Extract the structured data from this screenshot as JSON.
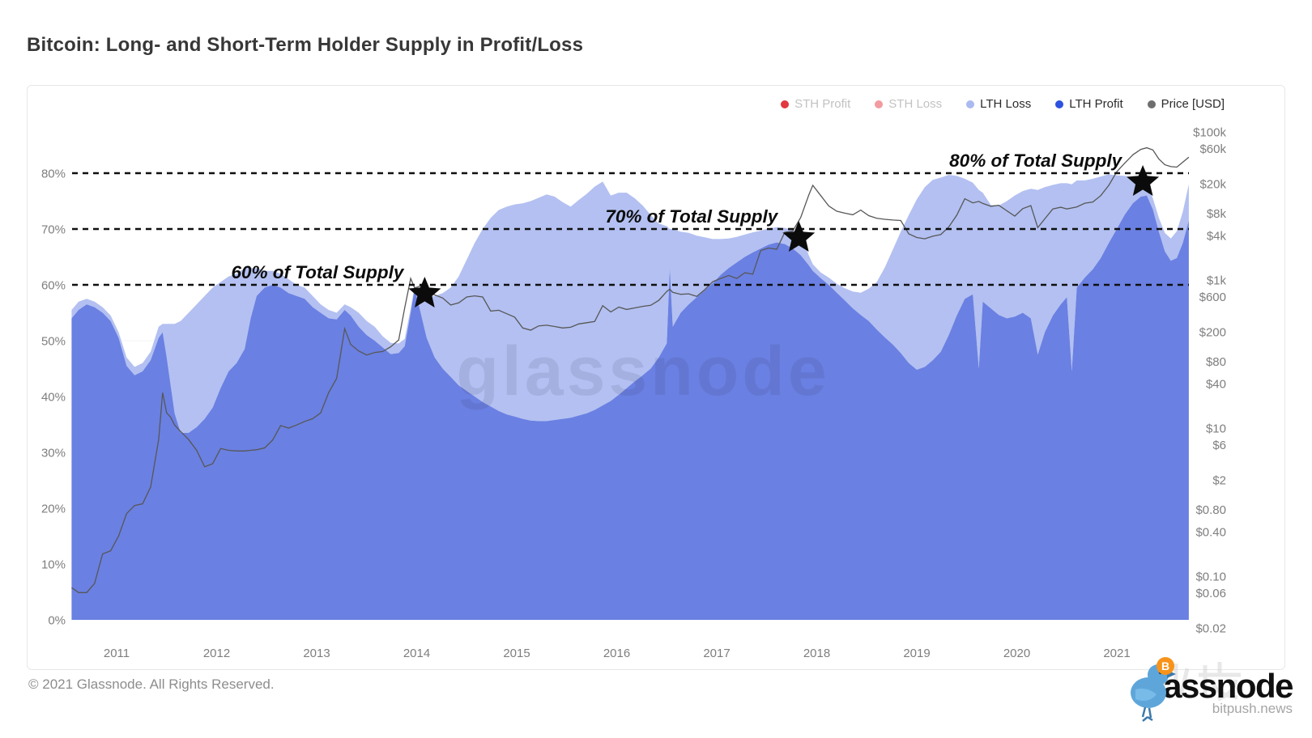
{
  "page": {
    "title": "Bitcoin: Long- and Short-Term Holder Supply in Profit/Loss",
    "watermark": "glassnode",
    "footer_copyright": "© 2021 Glassnode. All Rights Reserved.",
    "brand_logo_text": "glassnode",
    "brand_sub_text": "bitpush.news"
  },
  "legend": {
    "items": [
      {
        "label": "STH Profit",
        "color": "#e2383f",
        "active": false
      },
      {
        "label": "STH Loss",
        "color": "#f29ba0",
        "active": false
      },
      {
        "label": "LTH Loss",
        "color": "#aab9f0",
        "active": true
      },
      {
        "label": "LTH Profit",
        "color": "#2d52e0",
        "active": true
      },
      {
        "label": "Price [USD]",
        "color": "#6e6e6e",
        "active": true
      }
    ]
  },
  "chart_data": {
    "type": "area",
    "title": "Bitcoin: Long- and Short-Term Holder Supply in Profit/Loss",
    "x_ticks": [
      2011,
      2012,
      2013,
      2014,
      2015,
      2016,
      2017,
      2018,
      2019,
      2020,
      2021
    ],
    "left_axis": {
      "unit": "%",
      "ticks": [
        0,
        10,
        20,
        30,
        40,
        50,
        60,
        70,
        80
      ],
      "range": [
        0,
        90
      ]
    },
    "right_axis": {
      "label": "Price [USD]",
      "scale": "log",
      "ticks": [
        {
          "label": "$100k",
          "value": 100000
        },
        {
          "label": "$60k",
          "value": 60000
        },
        {
          "label": "$20k",
          "value": 20000
        },
        {
          "label": "$8k",
          "value": 8000
        },
        {
          "label": "$4k",
          "value": 4000
        },
        {
          "label": "$1k",
          "value": 1000
        },
        {
          "label": "$600",
          "value": 600
        },
        {
          "label": "$200",
          "value": 200
        },
        {
          "label": "$80",
          "value": 80
        },
        {
          "label": "$40",
          "value": 40
        },
        {
          "label": "$10",
          "value": 10
        },
        {
          "label": "$6",
          "value": 6
        },
        {
          "label": "$2",
          "value": 2
        },
        {
          "label": "$0.80",
          "value": 0.8
        },
        {
          "label": "$0.40",
          "value": 0.4
        },
        {
          "label": "$0.10",
          "value": 0.1
        },
        {
          "label": "$0.06",
          "value": 0.06
        },
        {
          "label": "$0.02",
          "value": 0.02
        }
      ]
    },
    "annotations": [
      {
        "text": "60% of Total Supply",
        "level_pct": 60,
        "star_year": 2014.08
      },
      {
        "text": "70% of Total Supply",
        "level_pct": 70,
        "star_year": 2017.82
      },
      {
        "text": "80% of Total Supply",
        "level_pct": 80,
        "star_year": 2021.26
      }
    ],
    "colors": {
      "lth_profit_area": "#6a80e2",
      "lth_loss_area": "#b3c0f1",
      "price_line": "#575757",
      "dashed_level": "#0f0f0f",
      "star": "#0b0b0b",
      "axis_text": "#7e7e7e",
      "gridline": "#f3f3f3"
    },
    "series": {
      "x": [
        2010.55,
        2010.62,
        2010.7,
        2010.78,
        2010.86,
        2010.94,
        2011.02,
        2011.1,
        2011.18,
        2011.26,
        2011.34,
        2011.42,
        2011.46,
        2011.5,
        2011.54,
        2011.58,
        2011.64,
        2011.72,
        2011.8,
        2011.88,
        2011.96,
        2012.04,
        2012.12,
        2012.2,
        2012.28,
        2012.34,
        2012.4,
        2012.48,
        2012.56,
        2012.64,
        2012.72,
        2012.8,
        2012.88,
        2012.96,
        2013.04,
        2013.12,
        2013.2,
        2013.28,
        2013.34,
        2013.42,
        2013.5,
        2013.58,
        2013.66,
        2013.74,
        2013.82,
        2013.88,
        2013.94,
        2013.98,
        2014.04,
        2014.1,
        2014.18,
        2014.26,
        2014.34,
        2014.42,
        2014.5,
        2014.58,
        2014.66,
        2014.74,
        2014.82,
        2014.9,
        2014.98,
        2015.06,
        2015.14,
        2015.22,
        2015.3,
        2015.38,
        2015.46,
        2015.54,
        2015.62,
        2015.7,
        2015.78,
        2015.86,
        2015.94,
        2016.02,
        2016.1,
        2016.18,
        2016.26,
        2016.34,
        2016.42,
        2016.5,
        2016.53,
        2016.56,
        2016.64,
        2016.72,
        2016.8,
        2016.88,
        2016.96,
        2017.04,
        2017.12,
        2017.2,
        2017.28,
        2017.36,
        2017.44,
        2017.52,
        2017.6,
        2017.68,
        2017.76,
        2017.84,
        2017.92,
        2017.96,
        2018.04,
        2018.12,
        2018.2,
        2018.28,
        2018.36,
        2018.44,
        2018.52,
        2018.6,
        2018.68,
        2018.76,
        2018.84,
        2018.92,
        2019.0,
        2019.08,
        2019.16,
        2019.24,
        2019.32,
        2019.4,
        2019.48,
        2019.56,
        2019.62,
        2019.66,
        2019.74,
        2019.82,
        2019.9,
        2019.98,
        2020.06,
        2020.14,
        2020.21,
        2020.28,
        2020.36,
        2020.44,
        2020.5,
        2020.55,
        2020.6,
        2020.68,
        2020.76,
        2020.84,
        2020.92,
        2021.0,
        2021.08,
        2021.16,
        2021.24,
        2021.3,
        2021.36,
        2021.42,
        2021.48,
        2021.54,
        2021.6,
        2021.66,
        2021.72
      ],
      "lth_profit_pct": [
        54,
        55.5,
        56.5,
        56,
        55,
        53.5,
        50.5,
        45.5,
        43.8,
        44.5,
        46.5,
        50.5,
        51.5,
        47,
        42,
        37,
        33.5,
        33.5,
        34.5,
        36,
        38,
        41.5,
        44.5,
        46,
        48.5,
        54,
        58,
        59.5,
        60,
        59.5,
        58.5,
        58,
        57.5,
        56,
        55,
        54,
        53.8,
        55.5,
        54.5,
        52.5,
        51,
        50,
        48.8,
        47.6,
        47.8,
        49,
        55,
        59.3,
        55,
        50.5,
        47,
        45,
        43.5,
        42,
        41,
        40,
        39,
        38.2,
        37.4,
        36.8,
        36.4,
        36,
        35.7,
        35.6,
        35.6,
        35.8,
        36,
        36.2,
        36.6,
        37,
        37.6,
        38.4,
        39.2,
        40.3,
        41.5,
        42.7,
        43.8,
        45,
        47,
        49.5,
        63,
        52.5,
        55,
        56.5,
        57.8,
        59,
        60.3,
        61.8,
        63,
        64,
        65,
        65.8,
        66.5,
        67.2,
        67.6,
        67.3,
        66.5,
        65.3,
        63.5,
        62.5,
        61.2,
        60,
        58.6,
        57.2,
        55.8,
        54.6,
        53.5,
        52,
        50.6,
        49.3,
        47.8,
        46,
        44.8,
        45.3,
        46.5,
        48,
        51,
        54.5,
        57.5,
        58.3,
        45,
        57,
        55.8,
        54.6,
        54,
        54.3,
        55,
        54,
        47.5,
        51.5,
        54.5,
        56.5,
        57.8,
        44.5,
        59.5,
        61.3,
        62.8,
        64.8,
        67.5,
        70,
        72.6,
        74.6,
        75.8,
        76,
        73.5,
        69.5,
        66,
        64.3,
        64.8,
        67.5,
        71.5
      ],
      "lth_loss_pct": [
        1.5,
        1.5,
        1,
        1,
        1,
        1,
        1,
        1.5,
        1.5,
        1.5,
        1.5,
        2,
        1.5,
        6,
        11,
        16,
        20,
        21.5,
        22,
        22,
        21.5,
        19,
        17,
        16,
        14.5,
        9,
        5,
        3,
        2.5,
        2.5,
        2.5,
        2,
        2,
        2,
        1.5,
        1.5,
        1.2,
        1,
        1.5,
        2.5,
        2.5,
        2.5,
        2,
        2,
        1.7,
        1.3,
        0.8,
        0.5,
        3.5,
        7.5,
        11,
        13.5,
        16,
        19.5,
        23.5,
        27.5,
        31,
        33.8,
        36,
        37.2,
        38,
        38.6,
        39.3,
        40,
        40.6,
        40,
        38.8,
        37.8,
        38.6,
        39.3,
        40,
        40.1,
        36.8,
        36.2,
        35,
        32.8,
        30.4,
        27.5,
        24,
        21,
        7,
        17.5,
        14.5,
        12.8,
        11,
        9.5,
        7.9,
        6.4,
        5.3,
        4.6,
        4,
        3.6,
        3.2,
        2.9,
        2.7,
        2.9,
        3.3,
        3.9,
        1.8,
        1.2,
        1,
        1.3,
        1.6,
        2.2,
        3,
        4,
        5.8,
        8.5,
        12.5,
        17,
        21.7,
        26.5,
        30.5,
        32.2,
        32.3,
        31.2,
        28.7,
        25,
        21.5,
        20,
        32,
        19.5,
        18.5,
        19.6,
        21,
        21.7,
        21.8,
        23.2,
        29.5,
        26,
        23.4,
        21.7,
        20.4,
        33.5,
        19.2,
        17.4,
        16.2,
        14.6,
        12.3,
        9.6,
        6.9,
        4.6,
        2.9,
        2.2,
        2,
        2.5,
        3.3,
        4,
        4.8,
        5.6,
        6.5
      ],
      "price_usd": [
        0.07,
        0.06,
        0.06,
        0.08,
        0.2,
        0.22,
        0.35,
        0.7,
        0.9,
        0.95,
        1.6,
        7,
        30,
        16,
        14,
        11,
        9,
        7,
        5,
        3,
        3.3,
        5.3,
        5,
        4.9,
        4.9,
        5,
        5.1,
        5.4,
        6.9,
        10.8,
        10,
        11,
        12.3,
        13.4,
        16,
        30,
        47,
        220,
        135,
        110,
        97,
        105,
        108,
        125,
        155,
        420,
        1050,
        780,
        830,
        700,
        630,
        570,
        460,
        490,
        590,
        610,
        590,
        380,
        390,
        350,
        315,
        225,
        210,
        240,
        245,
        235,
        225,
        230,
        255,
        265,
        275,
        450,
        370,
        430,
        400,
        420,
        440,
        455,
        530,
        700,
        750,
        680,
        640,
        650,
        600,
        740,
        950,
        1050,
        1150,
        1050,
        1250,
        1200,
        2500,
        2700,
        2600,
        4400,
        4600,
        7000,
        14000,
        19000,
        13800,
        10000,
        8500,
        8000,
        7600,
        8800,
        7400,
        6800,
        6600,
        6450,
        6350,
        4200,
        3750,
        3600,
        3900,
        4100,
        5200,
        7500,
        12500,
        11000,
        11500,
        10800,
        9900,
        10200,
        8600,
        7300,
        9200,
        10100,
        5100,
        6700,
        9100,
        9600,
        9100,
        9400,
        9700,
        10900,
        11300,
        13800,
        19000,
        29000,
        38000,
        49000,
        58000,
        61000,
        57000,
        43000,
        36000,
        34000,
        33500,
        39000,
        45500
      ]
    }
  }
}
